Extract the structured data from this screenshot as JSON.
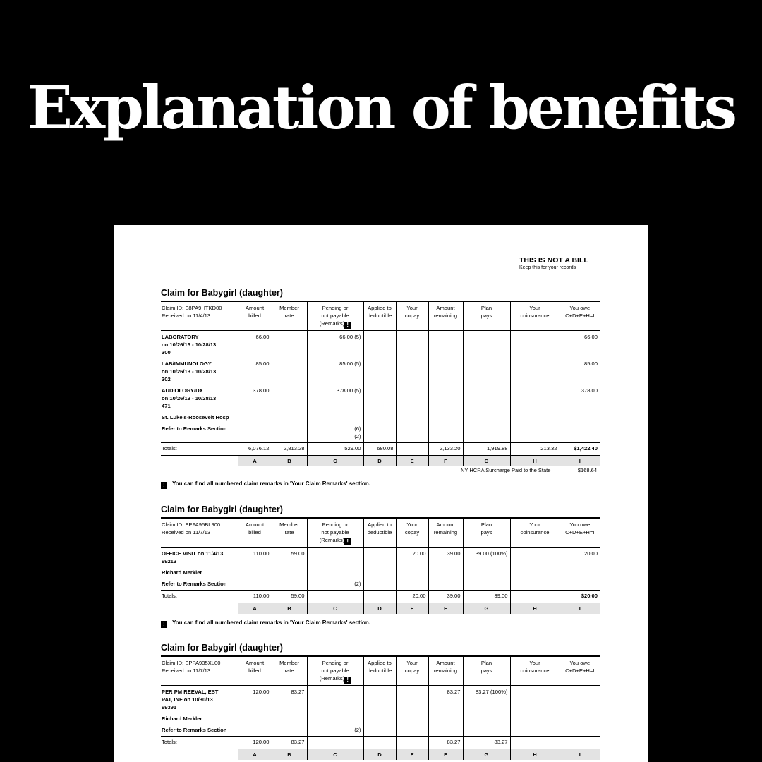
{
  "headline": "Explanation of benefits",
  "document": {
    "not_a_bill": "THIS IS NOT A BILL",
    "keep_records": "Keep this for your records",
    "columns": [
      {
        "line1": "",
        "line2": ""
      },
      {
        "line1": "Amount",
        "line2": "billed"
      },
      {
        "line1": "Member",
        "line2": "rate"
      },
      {
        "line1": "Pending or",
        "line2": "not payable",
        "line3": "(Remarks)"
      },
      {
        "line1": "Applied to",
        "line2": "deductible"
      },
      {
        "line1": "Your",
        "line2": "copay"
      },
      {
        "line1": "Amount",
        "line2": "remaining"
      },
      {
        "line1": "Plan",
        "line2": "pays"
      },
      {
        "line1": "Your",
        "line2": "coinsurance"
      },
      {
        "line1": "You owe",
        "line2": "C+D+E+H=I"
      }
    ],
    "column_letters": [
      "",
      "A",
      "B",
      "C",
      "D",
      "E",
      "F",
      "G",
      "H",
      "I"
    ],
    "remarks_icon": "!",
    "remarks_note": "You can find all numbered claim remarks in 'Your Claim Remarks' section.",
    "claims": [
      {
        "title": "Claim for Babygirl  (daughter)",
        "claim_id": "Claim ID: E8PA9HTKD00",
        "received": "Received on 11/4/13",
        "services": [
          {
            "lines": [
              "LABORATORY",
              "on 10/26/13 - 10/28/13",
              "300"
            ],
            "cells": [
              "66.00",
              "",
              "66.00  (5)",
              "",
              "",
              "",
              "",
              "",
              "66.00"
            ]
          },
          {
            "lines": [
              "LAB/IMMUNOLOGY",
              "on 10/26/13 - 10/28/13",
              "302"
            ],
            "cells": [
              "85.00",
              "",
              "85.00  (5)",
              "",
              "",
              "",
              "",
              "",
              "85.00"
            ]
          },
          {
            "lines": [
              "AUDIOLOGY/DX",
              "on 10/26/13 - 10/28/13",
              "471"
            ],
            "cells": [
              "378.00",
              "",
              "378.00  (5)",
              "",
              "",
              "",
              "",
              "",
              "378.00"
            ]
          },
          {
            "lines": [
              "St. Luke's-Roosevelt Hosp"
            ],
            "cells": [
              "",
              "",
              "",
              "",
              "",
              "",
              "",
              "",
              ""
            ]
          },
          {
            "lines": [
              "Refer to Remarks Section"
            ],
            "cells": [
              "",
              "",
              "(6)\n(2)",
              "",
              "",
              "",
              "",
              "",
              ""
            ]
          }
        ],
        "totals_label": "Totals:",
        "totals": [
          "6,076.12",
          "2,813.28",
          "529.00",
          "680.08",
          "",
          "2,133.20",
          "1,919.88",
          "213.32",
          "$1,422.40"
        ],
        "surcharge_label": "NY HCRA Surcharge Paid to the State",
        "surcharge_value": "$168.64"
      },
      {
        "title": "Claim for Babygirl  (daughter)",
        "claim_id": "Claim ID: EPFA95BL900",
        "received": "Received on 11/7/13",
        "services": [
          {
            "lines": [
              "OFFICE VISIT on 11/4/13",
              "99213"
            ],
            "cells": [
              "110.00",
              "59.00",
              "",
              "",
              "20.00",
              "39.00",
              "39.00 (100%)",
              "",
              "20.00"
            ]
          },
          {
            "lines": [
              "Richard Merkler"
            ],
            "cells": [
              "",
              "",
              "",
              "",
              "",
              "",
              "",
              "",
              ""
            ]
          },
          {
            "lines": [
              "Refer to Remarks Section"
            ],
            "cells": [
              "",
              "",
              "(2)",
              "",
              "",
              "",
              "",
              "",
              ""
            ]
          }
        ],
        "totals_label": "Totals:",
        "totals": [
          "110.00",
          "59.00",
          "",
          "",
          "20.00",
          "39.00",
          "39.00",
          "",
          "$20.00"
        ]
      },
      {
        "title": "Claim for Babygirl  (daughter)",
        "claim_id": "Claim ID: EPPA935XL00",
        "received": "Received on 11/7/13",
        "services": [
          {
            "lines": [
              "PER PM REEVAL, EST",
              "PAT, INF on 10/30/13",
              "99391"
            ],
            "cells": [
              "120.00",
              "83.27",
              "",
              "",
              "",
              "83.27",
              "83.27 (100%)",
              "",
              ""
            ]
          },
          {
            "lines": [
              "Richard Merkler"
            ],
            "cells": [
              "",
              "",
              "",
              "",
              "",
              "",
              "",
              "",
              ""
            ]
          },
          {
            "lines": [
              "Refer to Remarks Section"
            ],
            "cells": [
              "",
              "",
              "(2)",
              "",
              "",
              "",
              "",
              "",
              ""
            ]
          }
        ],
        "totals_label": "Totals:",
        "totals": [
          "120.00",
          "83.27",
          "",
          "",
          "",
          "83.27",
          "83.27",
          "",
          ""
        ]
      }
    ]
  }
}
